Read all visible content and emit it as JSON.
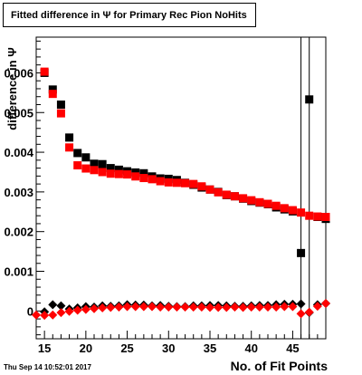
{
  "title": "Fitted difference in  Ψ  for Primary Rec Pion NoHits",
  "timestamp": "Thu Sep 14 10:52:01 2017",
  "chart_data": {
    "type": "scatter",
    "title": "Fitted difference in  Ψ  for Primary Rec Pion NoHits",
    "xlabel": "No. of Fit Points",
    "ylabel": "difference in  Ψ",
    "xlim": [
      14,
      49
    ],
    "ylim": [
      -0.0007,
      0.0069
    ],
    "x_ticks": [
      15,
      20,
      25,
      30,
      35,
      40,
      45
    ],
    "x_tick_labels": [
      "15",
      "20",
      "25",
      "30",
      "35",
      "40",
      "45"
    ],
    "y_ticks": [
      0,
      0.001,
      0.002,
      0.003,
      0.004,
      0.005,
      0.006
    ],
    "y_tick_labels": [
      "0",
      "0.001",
      "0.002",
      "0.003",
      "0.004",
      "0.005",
      "0.006"
    ],
    "grid": false,
    "series": [
      {
        "marker": "square",
        "color": "#000000",
        "x": [
          15,
          16,
          17,
          18,
          19,
          20,
          21,
          22,
          23,
          24,
          25,
          26,
          27,
          28,
          29,
          30,
          31,
          32,
          33,
          34,
          35,
          36,
          37,
          38,
          39,
          40,
          41,
          42,
          43,
          44,
          45,
          46,
          47,
          48,
          49
        ],
        "y": [
          0.006,
          0.00558,
          0.0052,
          0.00437,
          0.00398,
          0.00387,
          0.00371,
          0.0037,
          0.0036,
          0.00356,
          0.00352,
          0.00349,
          0.00347,
          0.00339,
          0.00334,
          0.00333,
          0.0033,
          0.00323,
          0.00318,
          0.00311,
          0.00306,
          0.003,
          0.00292,
          0.00289,
          0.00283,
          0.00277,
          0.00273,
          0.00269,
          0.00261,
          0.00256,
          0.00251,
          0.00146,
          0.00533,
          0.00237,
          0.00232
        ]
      },
      {
        "marker": "square",
        "color": "#ff0000",
        "x": [
          15,
          16,
          17,
          18,
          19,
          20,
          21,
          22,
          23,
          24,
          25,
          26,
          27,
          28,
          29,
          30,
          31,
          32,
          33,
          34,
          35,
          36,
          37,
          38,
          39,
          40,
          41,
          42,
          43,
          44,
          45,
          46,
          47,
          48,
          49
        ],
        "y": [
          0.00603,
          0.00547,
          0.00498,
          0.00412,
          0.00367,
          0.00359,
          0.00355,
          0.0035,
          0.00346,
          0.00345,
          0.00344,
          0.00339,
          0.00335,
          0.00332,
          0.00327,
          0.00324,
          0.00323,
          0.00322,
          0.0032,
          0.00314,
          0.00306,
          0.00299,
          0.00293,
          0.00289,
          0.00284,
          0.00279,
          0.00274,
          0.0027,
          0.00265,
          0.00259,
          0.00254,
          0.00248,
          0.0024,
          0.00238,
          0.00237
        ]
      },
      {
        "marker": "diamond",
        "color": "#000000",
        "x": [
          15,
          16,
          17,
          18,
          19,
          20,
          21,
          22,
          23,
          24,
          25,
          26,
          27,
          28,
          29,
          30,
          31,
          32,
          33,
          34,
          35,
          36,
          37,
          38,
          39,
          40,
          41,
          42,
          43,
          44,
          45,
          46,
          47,
          48,
          49
        ],
        "y": [
          -2e-05,
          0.00016,
          0.00013,
          5e-05,
          8e-05,
          0.00011,
          0.0001,
          0.00013,
          0.00012,
          0.00013,
          0.00016,
          0.00015,
          0.00015,
          0.00013,
          0.00014,
          0.00012,
          0.00011,
          0.00011,
          0.00013,
          0.00013,
          0.00014,
          0.00014,
          0.00013,
          0.00012,
          0.00012,
          0.00013,
          0.00014,
          0.00014,
          0.00016,
          0.00017,
          0.00017,
          0.00018,
          -4e-05,
          0.00016,
          0.00019
        ]
      },
      {
        "marker": "diamond",
        "color": "#ff0000",
        "x": [
          14,
          15,
          16,
          17,
          18,
          19,
          20,
          21,
          22,
          23,
          24,
          25,
          26,
          27,
          28,
          29,
          30,
          31,
          32,
          33,
          34,
          35,
          36,
          37,
          38,
          39,
          40,
          41,
          42,
          43,
          44,
          45,
          46,
          47,
          48,
          49
        ],
        "y": [
          -0.0001,
          -0.00011,
          -0.0001,
          -4e-05,
          -1e-05,
          2e-05,
          4e-05,
          6e-05,
          8e-05,
          9e-05,
          0.0001,
          0.00011,
          0.00011,
          0.00011,
          0.00011,
          0.0001,
          0.0001,
          0.0001,
          0.0001,
          0.0001,
          0.0001,
          9e-05,
          9e-05,
          9e-05,
          0.0001,
          9e-05,
          0.0001,
          0.0001,
          0.0001,
          0.0001,
          0.00011,
          0.00011,
          -7e-05,
          -3e-05,
          0.00012,
          0.00019
        ]
      }
    ],
    "vertical_lines_x": [
      46,
      47
    ]
  }
}
